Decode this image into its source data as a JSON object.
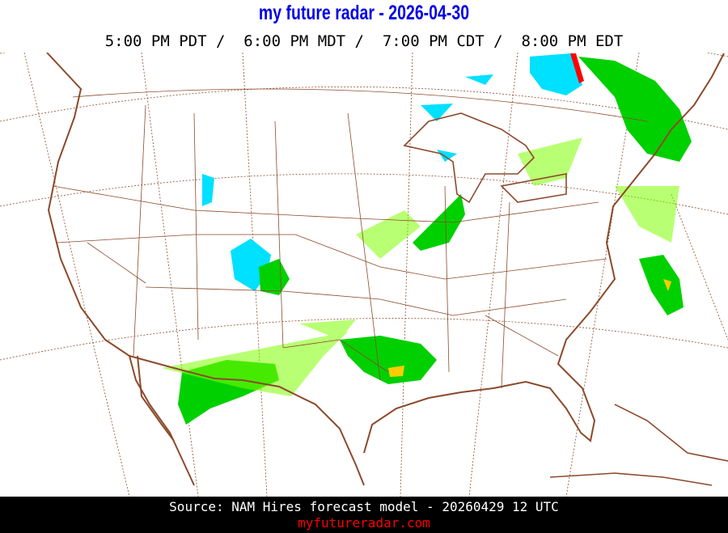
{
  "header": {
    "title": "my future radar - 2026-04-30",
    "times": "5:00 PM PDT /  6:00 PM MDT /  7:00 PM CDT /  8:00 PM EDT"
  },
  "map": {
    "region": "Contiguous United States",
    "layer": "forecast radar reflectivity",
    "colors": {
      "border": "#8b4a2b",
      "light_precip": "#80ff00",
      "moderate_precip": "#00d000",
      "snow": "#00e0ff",
      "heavy": "#ffcc00",
      "extreme": "#ff0000"
    }
  },
  "footer": {
    "source": "Source: NAM Hires forecast model - 20260429 12 UTC",
    "site": "myfutureradar.com"
  }
}
